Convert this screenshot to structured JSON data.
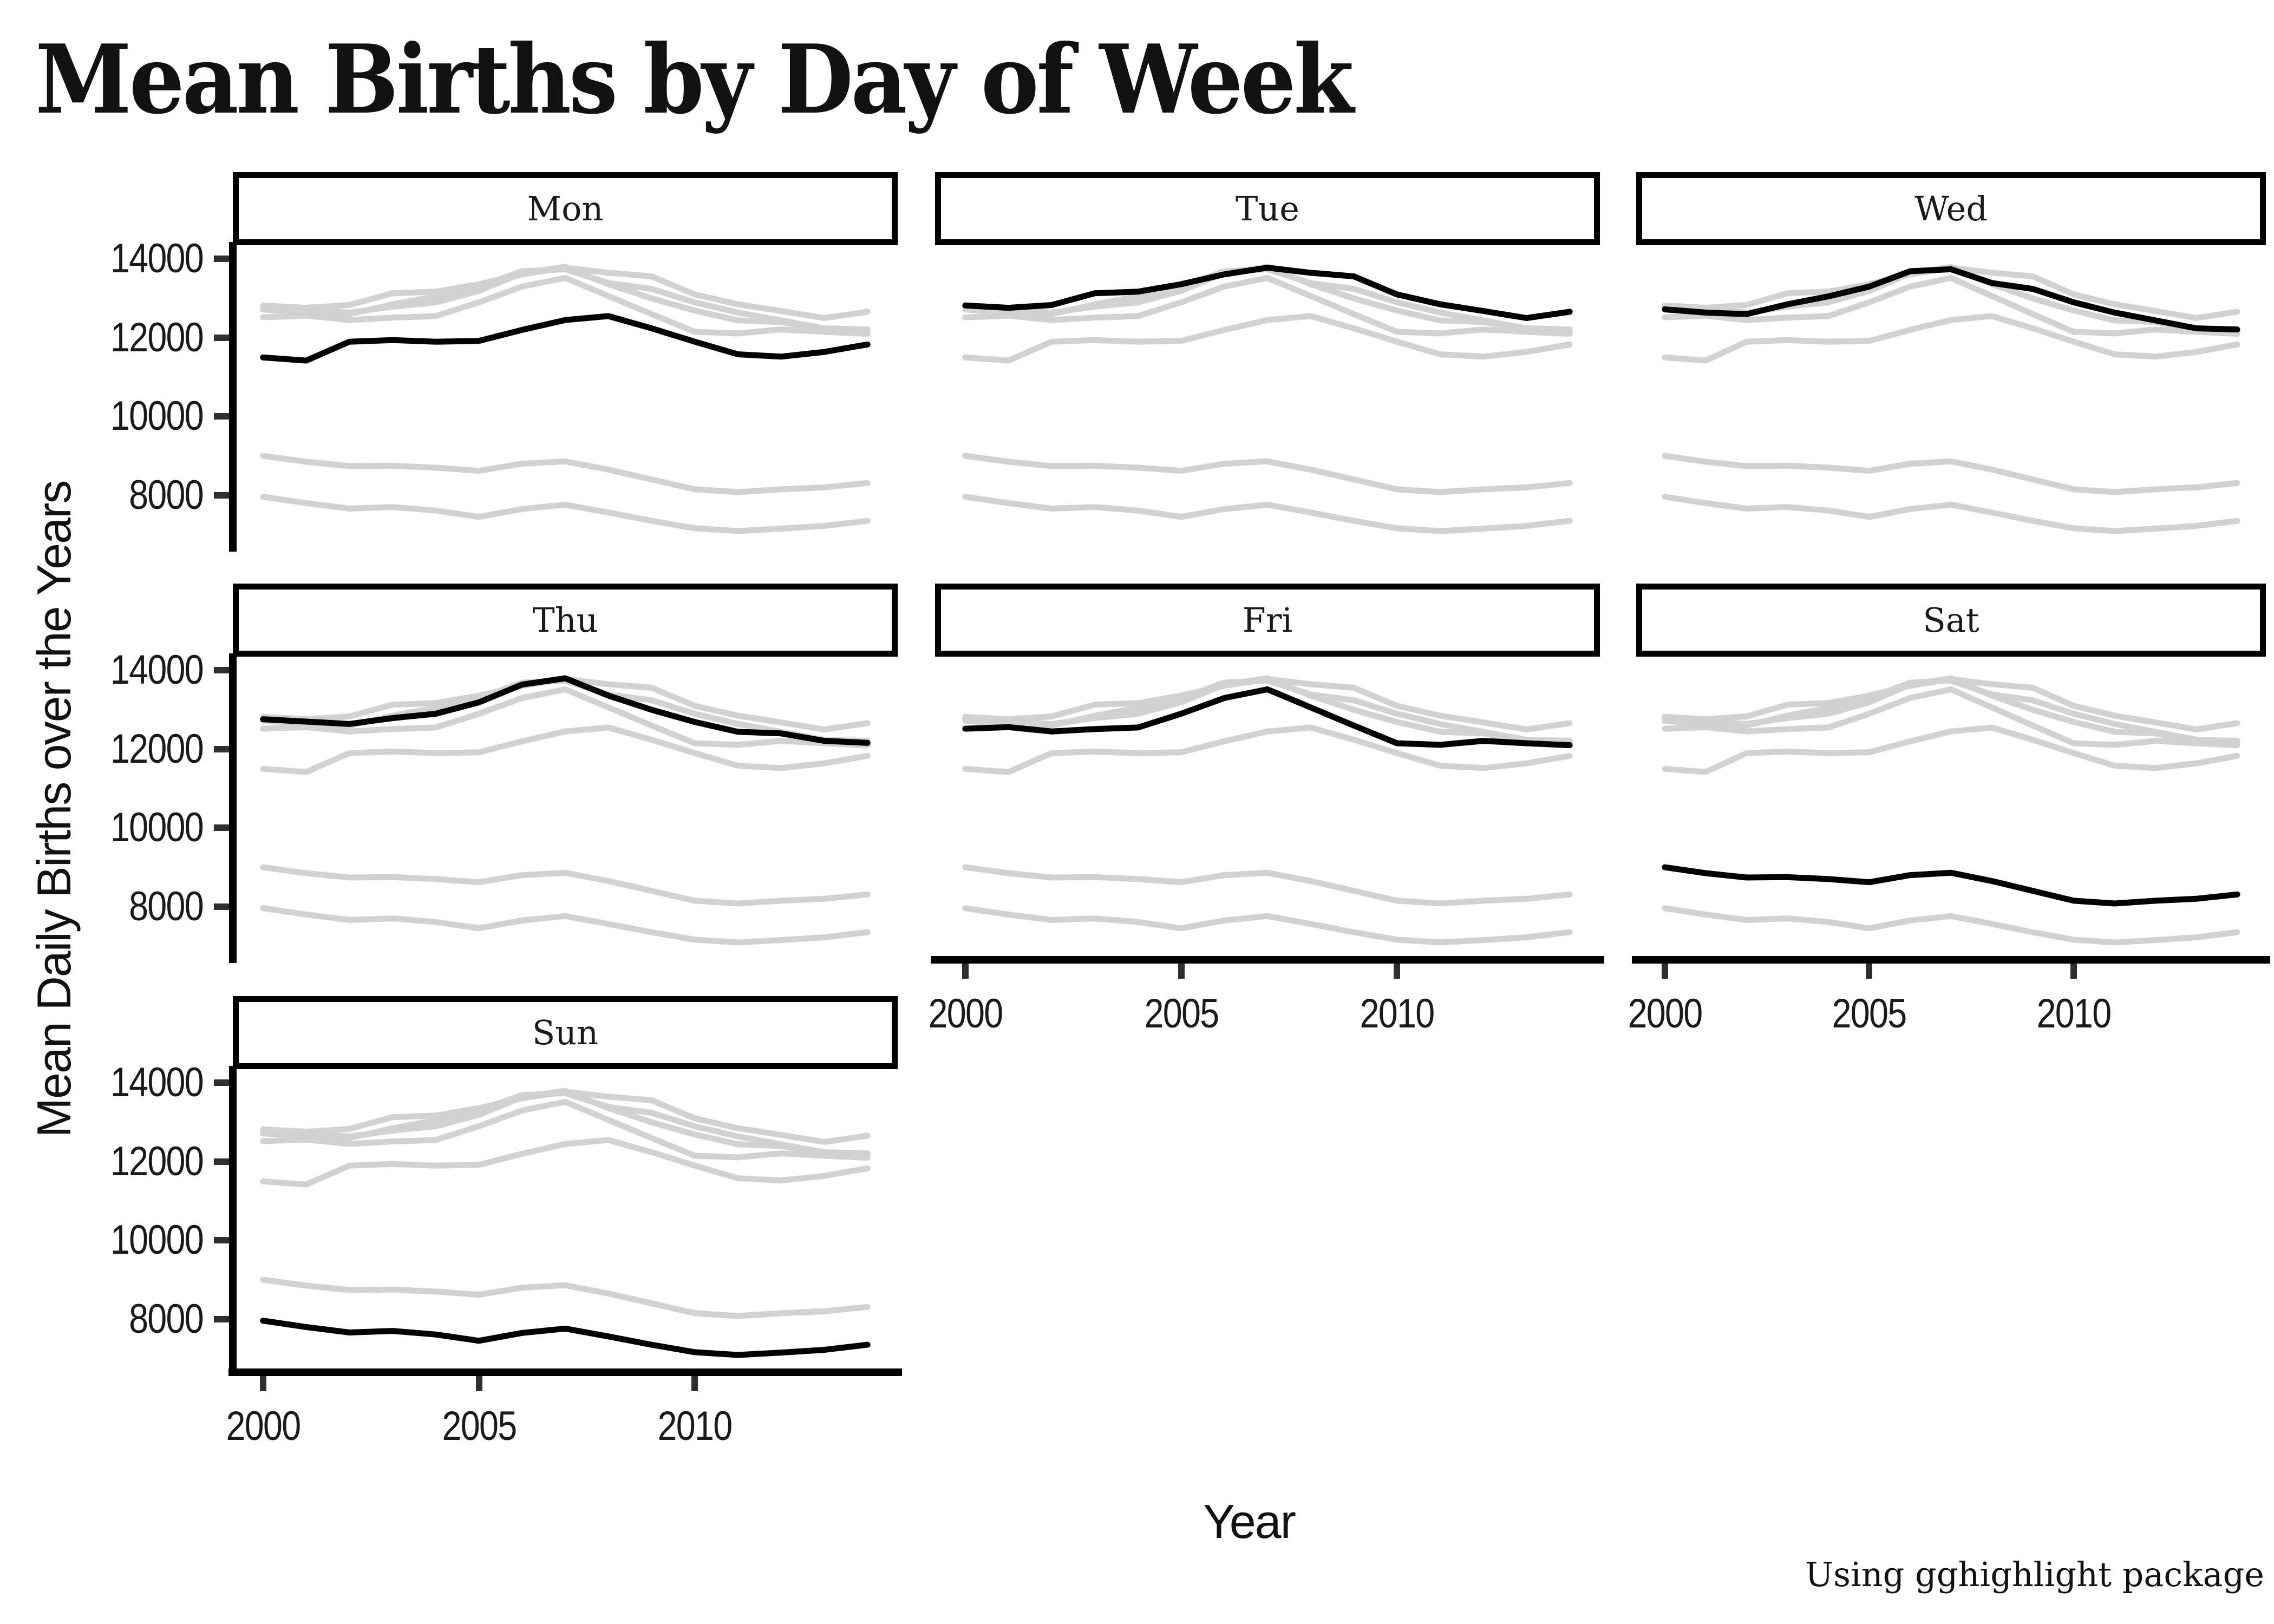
{
  "chart_data": {
    "type": "line",
    "title": "Mean Births by Day of Week",
    "xlabel": "Year",
    "ylabel": "Mean Daily Births over the Years",
    "caption": "Using gghighlight package",
    "facets": [
      "Mon",
      "Tue",
      "Wed",
      "Thu",
      "Fri",
      "Sat",
      "Sun"
    ],
    "x": [
      2000,
      2001,
      2002,
      2003,
      2004,
      2005,
      2006,
      2007,
      2008,
      2009,
      2010,
      2011,
      2012,
      2013,
      2014
    ],
    "series": [
      {
        "name": "Mon",
        "values": [
          11500,
          11420,
          11900,
          11940,
          11900,
          11920,
          12200,
          12450,
          12550,
          12240,
          11900,
          11580,
          11520,
          11640,
          11830
        ]
      },
      {
        "name": "Tue",
        "values": [
          12820,
          12760,
          12830,
          13130,
          13170,
          13360,
          13610,
          13780,
          13650,
          13560,
          13100,
          12850,
          12680,
          12500,
          12660
        ]
      },
      {
        "name": "Wed",
        "values": [
          12720,
          12640,
          12600,
          12850,
          13050,
          13300,
          13690,
          13740,
          13390,
          13240,
          12900,
          12640,
          12440,
          12240,
          12210
        ]
      },
      {
        "name": "Thu",
        "values": [
          12760,
          12700,
          12640,
          12790,
          12900,
          13190,
          13640,
          13800,
          13360,
          13000,
          12690,
          12440,
          12400,
          12210,
          12160
        ]
      },
      {
        "name": "Fri",
        "values": [
          12520,
          12560,
          12450,
          12510,
          12550,
          12900,
          13300,
          13520,
          13060,
          12600,
          12150,
          12110,
          12210,
          12150,
          12100
        ]
      },
      {
        "name": "Sat",
        "values": [
          9000,
          8850,
          8740,
          8750,
          8700,
          8620,
          8800,
          8860,
          8650,
          8400,
          8150,
          8080,
          8150,
          8200,
          8310
        ]
      },
      {
        "name": "Sun",
        "values": [
          7960,
          7800,
          7660,
          7700,
          7610,
          7450,
          7650,
          7760,
          7560,
          7350,
          7160,
          7090,
          7150,
          7220,
          7350
        ]
      }
    ],
    "x_ticks": [
      2000,
      2005,
      2010
    ],
    "y_ticks": [
      8000,
      10000,
      12000,
      14000
    ],
    "xlim": [
      1999.3,
      2014.7
    ],
    "ylim": [
      6650,
      14350
    ],
    "grid": "off",
    "legend": "none",
    "colors": {
      "highlight": "#000000",
      "muted": "#d2d2d2",
      "background": "#ffffff",
      "axis": "#000000",
      "tick": "#2f2f2f",
      "text": "#111111"
    }
  }
}
